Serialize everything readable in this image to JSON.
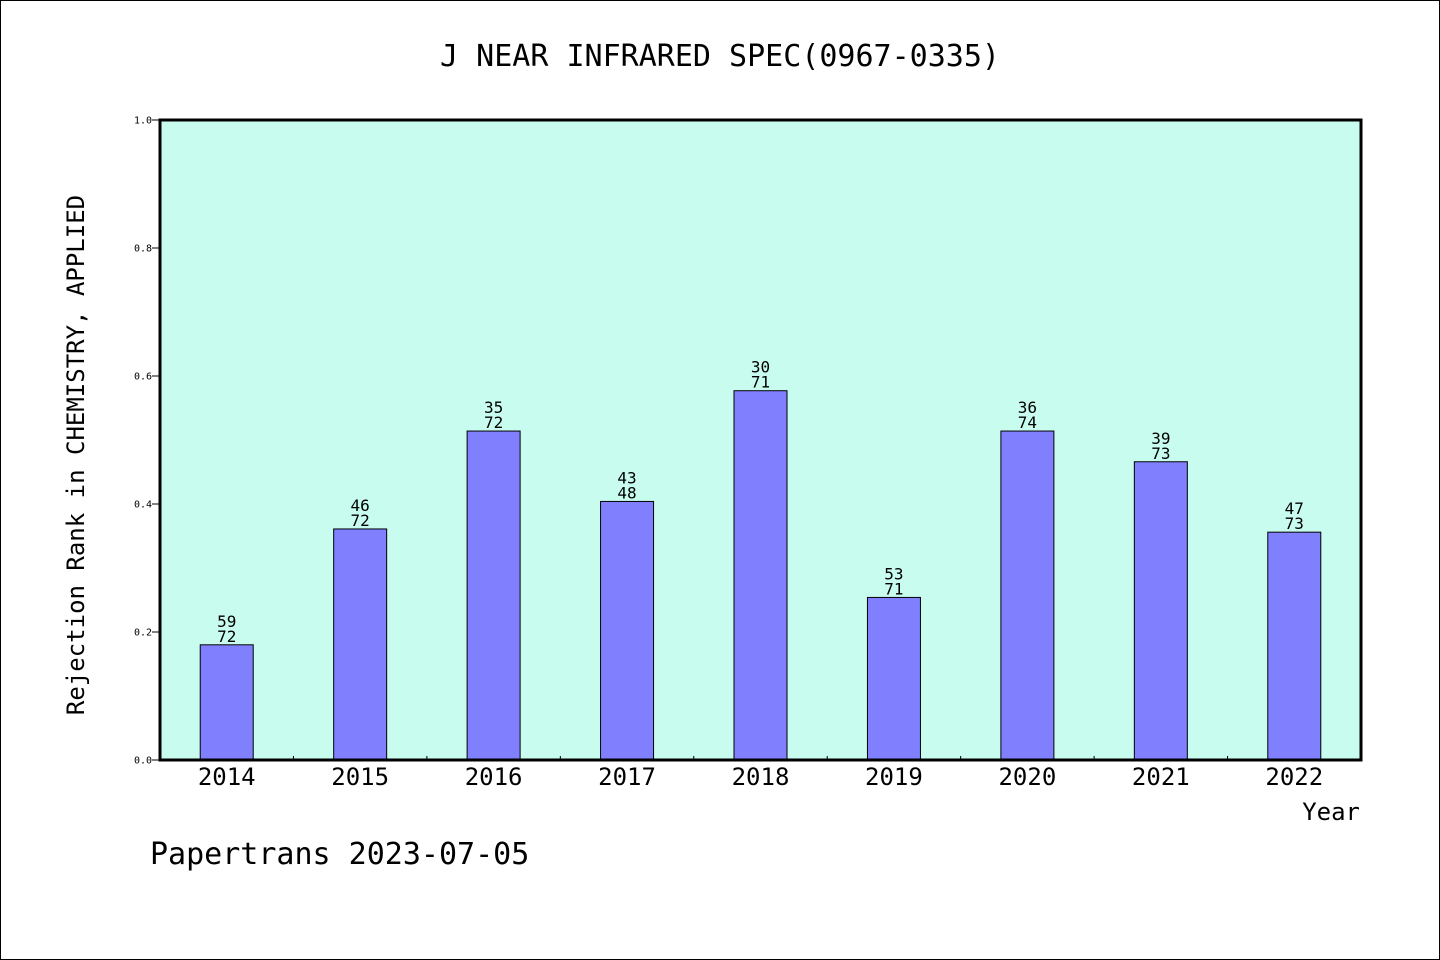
{
  "chart_data": {
    "type": "bar",
    "title": "J NEAR INFRARED SPEC(0967-0335)",
    "xlabel": "Year",
    "ylabel": "Rejection Rank in CHEMISTRY, APPLIED",
    "ylim": [
      0,
      1.0
    ],
    "yticks": [
      "0.0",
      "0.2",
      "0.4",
      "0.6",
      "0.8",
      "1.0"
    ],
    "categories": [
      "2014",
      "2015",
      "2016",
      "2017",
      "2018",
      "2019",
      "2020",
      "2021",
      "2022"
    ],
    "values": [
      0.18,
      0.361,
      0.514,
      0.404,
      0.577,
      0.254,
      0.514,
      0.466,
      0.356
    ],
    "labels_top": [
      "59",
      "46",
      "35",
      "43",
      "30",
      "53",
      "36",
      "39",
      "47"
    ],
    "labels_bottom": [
      "72",
      "72",
      "72",
      "48",
      "71",
      "71",
      "74",
      "73",
      "73"
    ],
    "grid": false,
    "plot_background": "#c8fcee",
    "bar_color": "#8080ff"
  },
  "footer": "Papertrans 2023-07-05"
}
